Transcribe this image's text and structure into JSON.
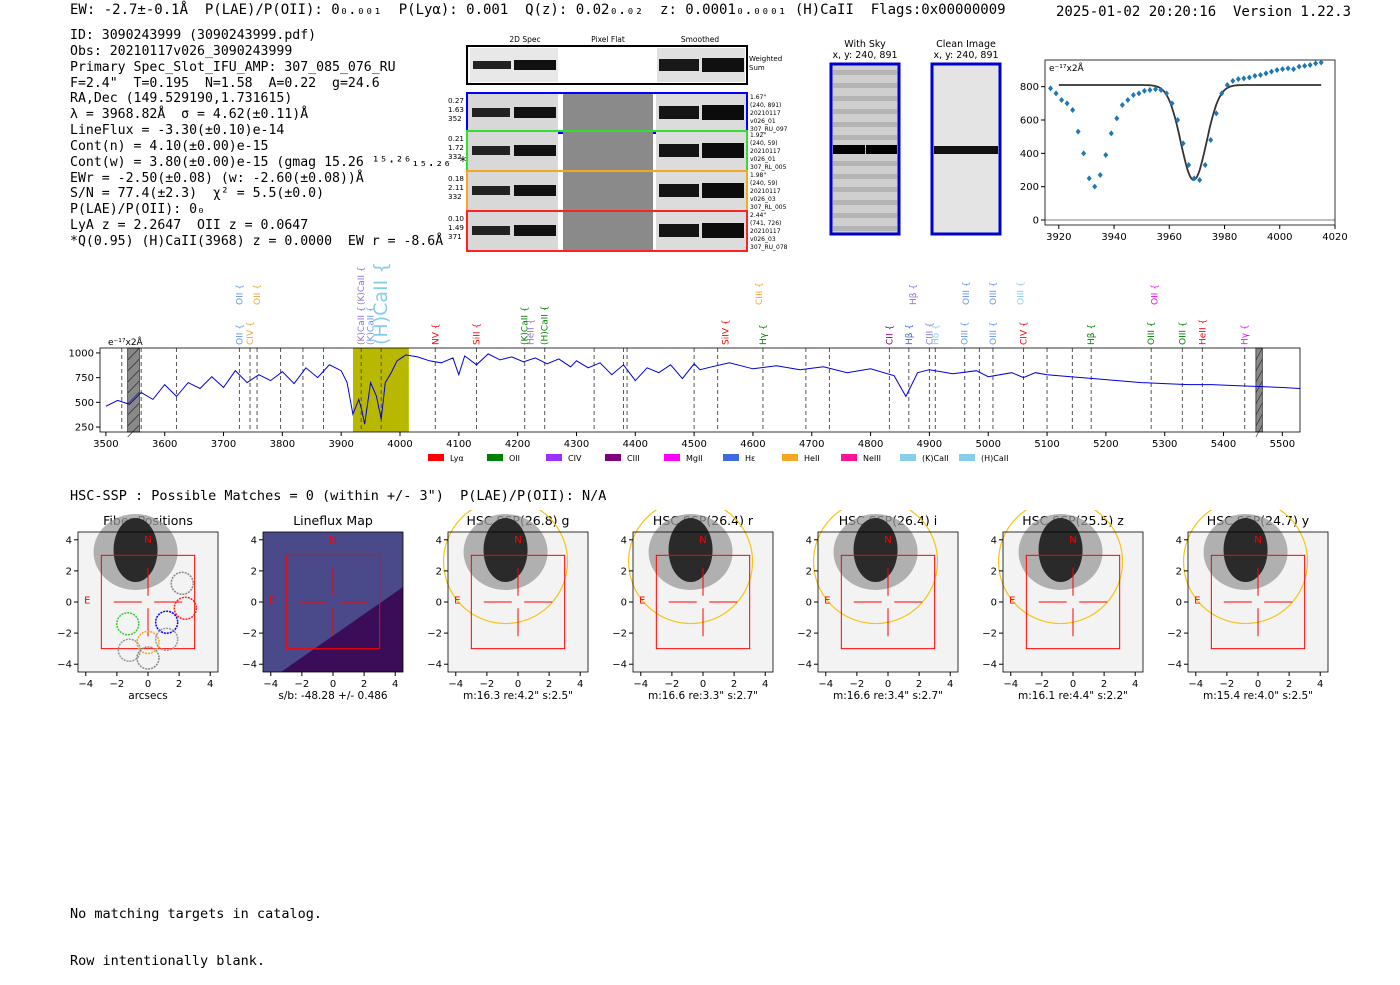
{
  "header": {
    "left": "EW: -2.7±-0.1Å  P(LAE)/P(OII): 0₀.₀₀₁  P(Lyα): 0.001  Q(z): 0.02₀.₀₂  z: 0.0001₀.₀₀₀₁ (H)CaII  Flags:0x00000009",
    "right": "2025-01-02 20:20:16  Version 1.22.3"
  },
  "info_lines": [
    "ID: 3090243999 (3090243999.pdf)",
    "Obs: 20210117v026_3090243999",
    "Primary Spec_Slot_IFU_AMP: 307_085_076_RU",
    "F=2.4\"  T=0.195  N=1.58  A=0.22  g=24.6",
    "RA,Dec (149.529190,1.731615)",
    "λ = 3968.82Å  σ = 4.62(±0.11)Å",
    "LineFlux = -3.30(±0.10)e-14",
    "Cont(n) = 4.10(±0.00)e-15",
    "Cont(w) = 3.80(±0.00)e-15 (gmag 15.26 ¹⁵·²⁶₁₅.₂₆ *)",
    "EWr = -2.50(±0.08) (w: -2.60(±0.08))Å",
    "S/N = 77.4(±2.3)  χ² = 5.5(±0.0)",
    "P(LAE)/P(OII): 0₀",
    "LyA z = 2.2647  OII z = 0.0647",
    "*Q(0.95) (H)CaII(3968) z = 0.0000  EW r = -8.6Å"
  ],
  "cutouts": {
    "col_labels": [
      "2D Spec",
      "Pixel Flat",
      "Smoothed"
    ],
    "weighted_label": "Weighted\nSum",
    "rows": [
      {
        "color": "#0000ff",
        "left": [
          "0.27",
          "1.63",
          "352"
        ],
        "right": [
          "1.67\"",
          "(240, 891)",
          "20210117",
          "v026_01",
          "307_RU_097"
        ]
      },
      {
        "color": "#33dd33",
        "left": [
          "0.21",
          "1.72",
          "332"
        ],
        "right": [
          "1.92\"",
          "(240, 59)",
          "20210117",
          "v026_01",
          "307_RL_005"
        ]
      },
      {
        "color": "#f5a623",
        "left": [
          "0.18",
          "2.11",
          "332"
        ],
        "right": [
          "1.98\"",
          "(240, 59)",
          "20210117",
          "v026_03",
          "307_RL_005"
        ]
      },
      {
        "color": "#ff2222",
        "left": [
          "0.10",
          "1.49",
          "371"
        ],
        "right": [
          "2.44\"",
          "(741, 726)",
          "20210117",
          "v026_03",
          "307_RU_078"
        ]
      }
    ]
  },
  "sky_panels": {
    "with_sky_title": "With Sky",
    "with_sky_coords": "x, y: 240, 891",
    "clean_title": "Clean Image",
    "clean_coords": "x, y: 240, 891"
  },
  "zoom_chart": {
    "unit": "e⁻¹⁷x2Å"
  },
  "line_labels": [
    {
      "text": "OII",
      "x": 3727,
      "color": "#6495ed",
      "row": 1
    },
    {
      "text": "OII",
      "x": 3727,
      "color": "#6495ed",
      "row": 0
    },
    {
      "text": "CIV",
      "x": 3745,
      "color": "#e8a838",
      "row": 1
    },
    {
      "text": "OII",
      "x": 3757,
      "color": "#e8a838",
      "row": 0
    },
    {
      "text": "(K)CaII",
      "x": 3934,
      "color": "#9370db",
      "row": 1
    },
    {
      "text": "(K)CaII",
      "x": 3934,
      "color": "#9370db",
      "row": 0
    },
    {
      "text": "(K)CaII",
      "x": 3950,
      "color": "#6495ed",
      "row": 1
    },
    {
      "text": "(H)CaII",
      "x": 3968,
      "color": "#87ceeb",
      "row": 0,
      "big": true
    },
    {
      "text": "NV",
      "x": 4060,
      "color": "#ff0000",
      "row": 1
    },
    {
      "text": "SiII",
      "x": 4130,
      "color": "#ff0000",
      "row": 1
    },
    {
      "text": "(K)CaII",
      "x": 4212,
      "color": "#008000",
      "row": 1
    },
    {
      "text": "HeII",
      "x": 4222,
      "color": "#9370db",
      "row": 1
    },
    {
      "text": "(H)CaII",
      "x": 4246,
      "color": "#008000",
      "row": 1
    },
    {
      "text": "SiIV",
      "x": 4553,
      "color": "#ff0000",
      "row": 1
    },
    {
      "text": "CIII",
      "x": 4610,
      "color": "#f5a623",
      "row": 0
    },
    {
      "text": "Hγ",
      "x": 4617,
      "color": "#008000",
      "row": 1
    },
    {
      "text": "CII",
      "x": 4832,
      "color": "#800080",
      "row": 1
    },
    {
      "text": "Hβ",
      "x": 4865,
      "color": "#4169e1",
      "row": 1
    },
    {
      "text": "Hβ",
      "x": 4872,
      "color": "#9370db",
      "row": 0
    },
    {
      "text": "CIII",
      "x": 4900,
      "color": "#9370db",
      "row": 1
    },
    {
      "text": "Hδ",
      "x": 4910,
      "color": "#87ceeb",
      "row": 1
    },
    {
      "text": "OIII",
      "x": 4960,
      "color": "#6495ed",
      "row": 1
    },
    {
      "text": "OIII",
      "x": 4962,
      "color": "#6495ed",
      "row": 0
    },
    {
      "text": "OIII",
      "x": 5008,
      "color": "#6495ed",
      "row": 1
    },
    {
      "text": "OIII",
      "x": 5008,
      "color": "#6495ed",
      "row": 0
    },
    {
      "text": "OIII",
      "x": 5055,
      "color": "#87ceeb",
      "row": 0
    },
    {
      "text": "CIV",
      "x": 5060,
      "color": "#ff0000",
      "row": 1
    },
    {
      "text": "Hβ",
      "x": 5175,
      "color": "#008000",
      "row": 1
    },
    {
      "text": "OIII",
      "x": 5277,
      "color": "#008000",
      "row": 1
    },
    {
      "text": "OII",
      "x": 5283,
      "color": "#ff00ff",
      "row": 0
    },
    {
      "text": "OIII",
      "x": 5330,
      "color": "#008000",
      "row": 1
    },
    {
      "text": "HeII",
      "x": 5364,
      "color": "#ff0000",
      "row": 1
    },
    {
      "text": "Hγ",
      "x": 5436,
      "color": "#ff00ff",
      "row": 1
    }
  ],
  "legend": [
    {
      "label": "Lyα",
      "color": "#ff0000"
    },
    {
      "label": "OII",
      "color": "#008000"
    },
    {
      "label": "CIV",
      "color": "#9b30ff"
    },
    {
      "label": "CIII",
      "color": "#800080"
    },
    {
      "label": "MgII",
      "color": "#ff00ff"
    },
    {
      "label": "Hε",
      "color": "#4169e1"
    },
    {
      "label": "HeII",
      "color": "#f5a623"
    },
    {
      "label": "NeIII",
      "color": "#ff1493"
    },
    {
      "label": "(K)CaII",
      "color": "#87ceeb"
    },
    {
      "label": "(H)CaII",
      "color": "#87ceeb"
    }
  ],
  "spectrum_unit": "e⁻¹⁷x2Å",
  "hsc_line": "HSC-SSP : Possible Matches = 0 (within +/- 3\")  P(LAE)/P(OII): N/A",
  "image_panels": [
    {
      "title": "Fiber Positions",
      "caption": "arcsecs",
      "type": "fiber"
    },
    {
      "title": "Lineflux Map",
      "caption": "s/b: -48.28 +/- 0.486",
      "type": "lineflux"
    },
    {
      "title": "HSC SSP(26.8) g",
      "caption": "m:16.3  re:4.2\"  s:2.5\"",
      "type": "hsc"
    },
    {
      "title": "HSC SSP(26.4) r",
      "caption": "m:16.6  re:3.3\"  s:2.7\"",
      "type": "hsc"
    },
    {
      "title": "HSC SSP(26.4) i",
      "caption": "m:16.6  re:3.4\"  s:2.7\"",
      "type": "hsc"
    },
    {
      "title": "HSC SSP(25.5) z",
      "caption": "m:16.1  re:4.4\"  s:2.2\"",
      "type": "hsc"
    },
    {
      "title": "HSC SSP(24.7) y",
      "caption": "m:15.4  re:4.0\"  s:2.5\"",
      "type": "hsc"
    }
  ],
  "compass": {
    "north": "N",
    "east": "E"
  },
  "footer": [
    "No matching targets in catalog.",
    "Row intentionally blank."
  ],
  "chart_data": [
    {
      "type": "scatter",
      "title": "",
      "ylabel": "e⁻¹⁷x2Å",
      "xlim": [
        3915,
        4020
      ],
      "ylim": [
        -30,
        960
      ],
      "xticks": [
        3920,
        3940,
        3960,
        3980,
        4000,
        4020
      ],
      "yticks": [
        0,
        200,
        400,
        600,
        800
      ],
      "x": [
        3917,
        3919,
        3921,
        3923,
        3925,
        3927,
        3929,
        3931,
        3933,
        3935,
        3937,
        3939,
        3941,
        3943,
        3945,
        3947,
        3949,
        3951,
        3953,
        3955,
        3957,
        3959,
        3961,
        3963,
        3965,
        3967,
        3969,
        3971,
        3973,
        3975,
        3977,
        3979,
        3981,
        3983,
        3985,
        3987,
        3989,
        3991,
        3993,
        3995,
        3997,
        3999,
        4001,
        4003,
        4005,
        4007,
        4009,
        4011,
        4013,
        4015
      ],
      "y": [
        790,
        760,
        720,
        700,
        660,
        530,
        400,
        250,
        200,
        270,
        390,
        520,
        610,
        690,
        720,
        750,
        760,
        775,
        780,
        785,
        780,
        760,
        700,
        600,
        460,
        330,
        250,
        240,
        330,
        480,
        640,
        760,
        810,
        835,
        845,
        850,
        855,
        865,
        870,
        880,
        890,
        900,
        905,
        910,
        905,
        920,
        925,
        930,
        940,
        945
      ],
      "fit_line": {
        "level": 810,
        "center": 3968.82,
        "sigma": 4.62,
        "depth": 570
      }
    },
    {
      "type": "line",
      "title": "",
      "ylabel": "e⁻¹⁷x2Å",
      "xlim": [
        3490,
        5530
      ],
      "ylim": [
        200,
        1050
      ],
      "xticks": [
        3500,
        3600,
        3700,
        3800,
        3900,
        4000,
        4100,
        4200,
        4300,
        4400,
        4500,
        4600,
        4700,
        4800,
        4900,
        5000,
        5100,
        5200,
        5300,
        5400,
        5500
      ],
      "yticks": [
        250,
        500,
        750,
        1000
      ],
      "highlight_band": [
        3920,
        4015
      ],
      "series": [
        {
          "x": [
            3500,
            3520,
            3540,
            3560,
            3580,
            3600,
            3620,
            3640,
            3660,
            3680,
            3700,
            3720,
            3740,
            3760,
            3780,
            3800,
            3820,
            3840,
            3860,
            3880,
            3900,
            3910,
            3920,
            3930,
            3935,
            3940,
            3950,
            3960,
            3968,
            3975,
            3985,
            3995,
            4010,
            4030,
            4050,
            4070,
            4090,
            4100,
            4110,
            4130,
            4150,
            4170,
            4190,
            4210,
            4230,
            4250,
            4270,
            4290,
            4300,
            4320,
            4340,
            4360,
            4380,
            4400,
            4420,
            4440,
            4460,
            4480,
            4500,
            4510,
            4530,
            4560,
            4600,
            4640,
            4680,
            4720,
            4760,
            4800,
            4840,
            4860,
            4880,
            4900,
            4940,
            4980,
            5000,
            5040,
            5060,
            5080,
            5100,
            5140,
            5180,
            5220,
            5260,
            5300,
            5340,
            5380,
            5420,
            5460,
            5500,
            5530
          ],
          "y": [
            460,
            520,
            480,
            600,
            530,
            680,
            560,
            700,
            640,
            760,
            650,
            820,
            700,
            780,
            720,
            810,
            690,
            850,
            750,
            880,
            820,
            700,
            380,
            530,
            420,
            280,
            700,
            560,
            330,
            700,
            800,
            920,
            980,
            960,
            920,
            900,
            950,
            780,
            970,
            880,
            990,
            930,
            960,
            910,
            950,
            890,
            940,
            860,
            920,
            850,
            900,
            780,
            880,
            720,
            850,
            800,
            880,
            740,
            890,
            830,
            860,
            900,
            840,
            870,
            830,
            860,
            800,
            840,
            770,
            560,
            800,
            830,
            790,
            820,
            760,
            800,
            750,
            800,
            780,
            760,
            740,
            720,
            700,
            690,
            680,
            680,
            670,
            660,
            650,
            640
          ]
        }
      ]
    }
  ]
}
